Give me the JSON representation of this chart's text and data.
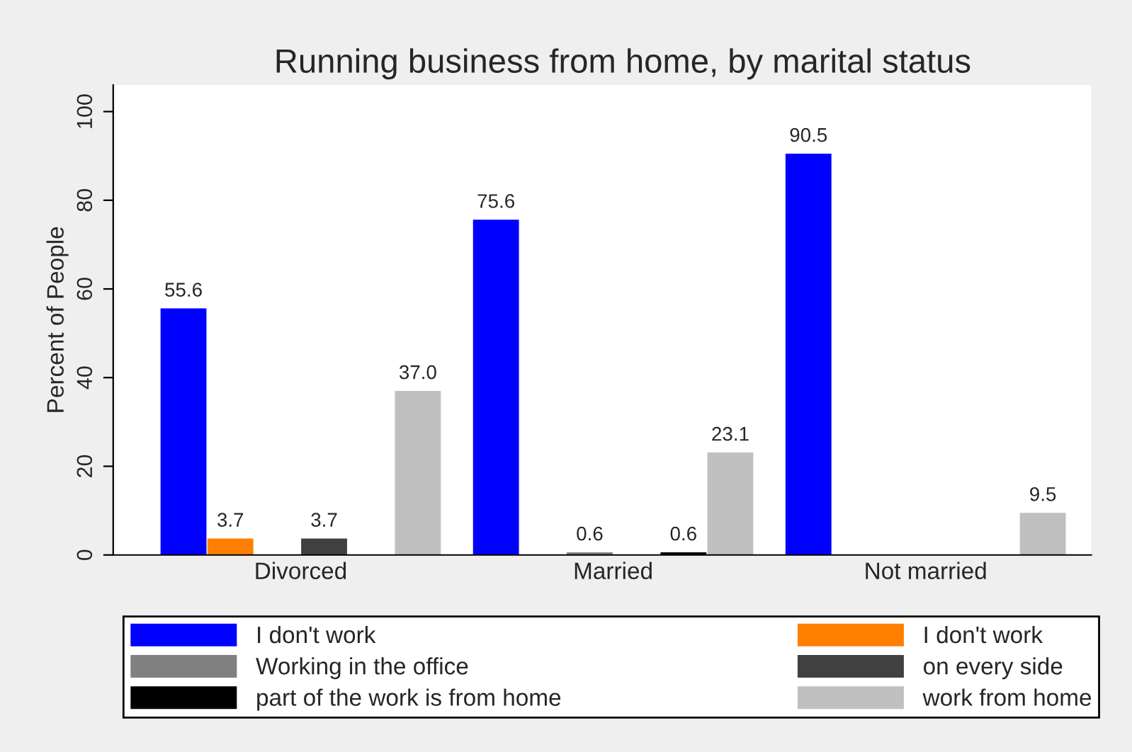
{
  "chart_data": {
    "type": "bar",
    "title": "Running business from home, by marital status",
    "ylabel": "Percent of People",
    "categories": [
      "Divorced",
      "Married",
      "Not married"
    ],
    "series": [
      {
        "name": "I don't work",
        "color": "#0000ff",
        "values": [
          55.6,
          75.6,
          90.5
        ],
        "value_labels": [
          "55.6",
          "75.6",
          "90.5"
        ]
      },
      {
        "name": "I don't work",
        "color": "#ff8000",
        "values": [
          3.7,
          null,
          null
        ],
        "value_labels": [
          "3.7",
          null,
          null
        ]
      },
      {
        "name": "Working in the office",
        "color": "#808080",
        "values": [
          null,
          0.6,
          null
        ],
        "value_labels": [
          null,
          "0.6",
          null
        ]
      },
      {
        "name": "on every side",
        "color": "#404040",
        "values": [
          3.7,
          null,
          null
        ],
        "value_labels": [
          "3.7",
          null,
          null
        ]
      },
      {
        "name": "part of the work is from home",
        "color": "#000000",
        "values": [
          null,
          0.6,
          null
        ],
        "value_labels": [
          null,
          "0.6",
          null
        ]
      },
      {
        "name": "work from home",
        "color": "#c0c0c0",
        "values": [
          37.0,
          23.1,
          9.5
        ],
        "value_labels": [
          "37.0",
          "23.1",
          "9.5"
        ]
      }
    ],
    "ylim": [
      0,
      106
    ],
    "yticks": [
      0,
      20,
      40,
      60,
      80,
      100
    ],
    "grid": false,
    "legend": "bottom"
  }
}
